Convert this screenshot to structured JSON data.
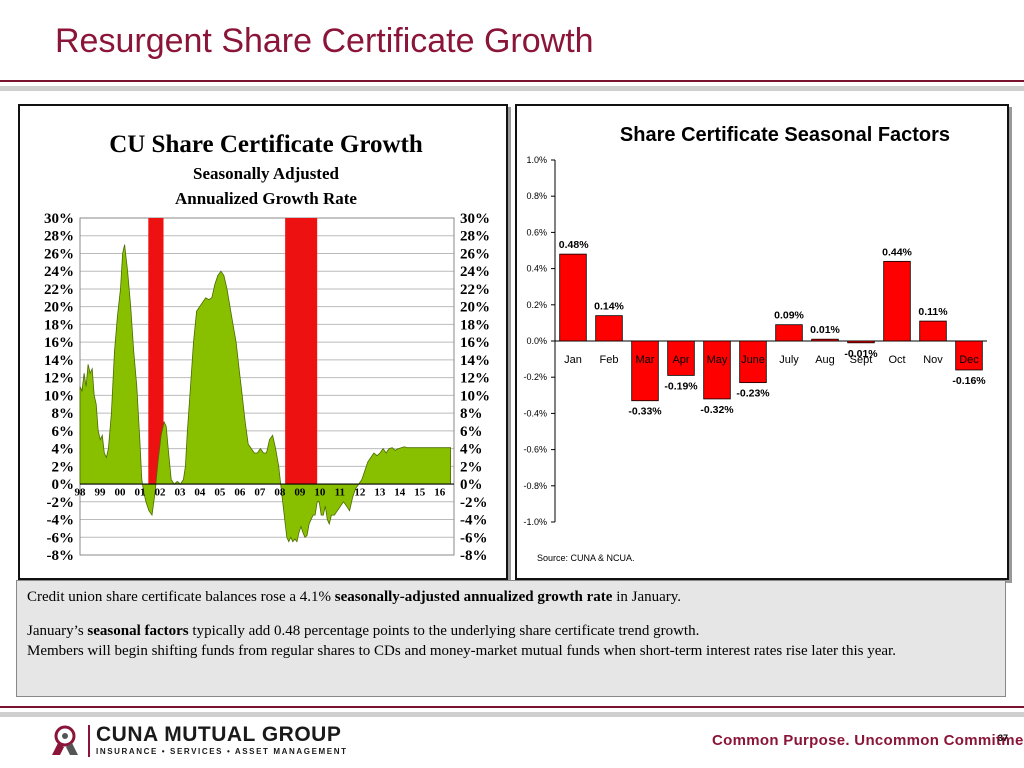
{
  "title": "Resurgent Share Certificate Growth",
  "footer": {
    "company": "CUNA MUTUAL GROUP",
    "tagline": "INSURANCE  •  SERVICES  •  ASSET MANAGEMENT",
    "slogan": "Common Purpose. Uncommon Commitment.",
    "page_number": "37"
  },
  "text_box": {
    "line1_pre": "Credit union share certificate balances rose a 4.1% ",
    "line1_bold": "seasonally-adjusted annualized growth rate",
    "line1_post": " in January.",
    "line2_pre": "January’s ",
    "line2_bold": "seasonal factors",
    "line2_post": "  typically add 0.48 percentage points to the underlying share certificate trend growth.",
    "line3": "Members will begin shifting funds from regular shares to CDs and money-market mutual funds when short-term interest rates rise later this year."
  },
  "colors": {
    "title": "#8a1538",
    "area_fill": "#88c000",
    "bar_fill": "#ff0000",
    "highlight_fill": "#ee1111"
  },
  "chart_data": [
    {
      "type": "area",
      "title": "CU Share Certificate Growth",
      "subtitle_line1": "Seasonally Adjusted",
      "subtitle_line2": "Annualized Growth Rate",
      "ylim": [
        -8,
        30
      ],
      "y_ticks": [
        30,
        28,
        26,
        24,
        22,
        20,
        18,
        16,
        14,
        12,
        10,
        8,
        6,
        4,
        2,
        0,
        -2,
        -4,
        -6,
        -8
      ],
      "y_tick_labels": [
        "30%",
        "28%",
        "26%",
        "24%",
        "22%",
        "20%",
        "18%",
        "16%",
        "14%",
        "12%",
        "10%",
        "8%",
        "6%",
        "4%",
        "2%",
        "0%",
        "-2%",
        "-4%",
        "-6%",
        "-8%"
      ],
      "x_tick_labels": [
        "98",
        "99",
        "00",
        "01",
        "02",
        "03",
        "04",
        "05",
        "06",
        "07",
        "08",
        "09",
        "10",
        "11",
        "12",
        "13",
        "14",
        "15",
        "16"
      ],
      "xlim": [
        1997.8,
        2016.25
      ],
      "highlights": [
        {
          "x0": 2001.17,
          "x1": 2001.92
        },
        {
          "x0": 2007.92,
          "x1": 2009.5
        }
      ],
      "x": [
        1997.8,
        1997.9,
        1998.0,
        1998.1,
        1998.2,
        1998.3,
        1998.4,
        1998.5,
        1998.6,
        1998.7,
        1998.8,
        1998.9,
        1999.0,
        1999.1,
        1999.2,
        1999.35,
        1999.5,
        1999.65,
        1999.8,
        1999.9,
        2000.0,
        2000.15,
        2000.3,
        2000.45,
        2000.6,
        2000.75,
        2000.85,
        2000.95,
        2001.05,
        2001.2,
        2001.35,
        2001.5,
        2001.65,
        2001.8,
        2001.95,
        2002.05,
        2002.15,
        2002.3,
        2002.45,
        2002.6,
        2002.75,
        2002.9,
        2003.0,
        2003.1,
        2003.25,
        2003.4,
        2003.55,
        2003.7,
        2003.85,
        2004.0,
        2004.15,
        2004.3,
        2004.45,
        2004.6,
        2004.75,
        2004.9,
        2005.05,
        2005.2,
        2005.35,
        2005.5,
        2005.65,
        2005.8,
        2005.95,
        2006.1,
        2006.25,
        2006.4,
        2006.55,
        2006.7,
        2006.85,
        2007.0,
        2007.15,
        2007.3,
        2007.45,
        2007.6,
        2007.75,
        2007.9,
        2008.0,
        2008.1,
        2008.2,
        2008.3,
        2008.4,
        2008.5,
        2008.6,
        2008.7,
        2008.8,
        2008.9,
        2009.0,
        2009.1,
        2009.2,
        2009.3,
        2009.4,
        2009.5,
        2009.6,
        2009.7,
        2009.8,
        2009.9,
        2010.0,
        2010.1,
        2010.2,
        2010.35,
        2010.5,
        2010.65,
        2010.8,
        2010.95,
        2011.1,
        2011.25,
        2011.4,
        2011.55,
        2011.7,
        2011.85,
        2012.0,
        2012.15,
        2012.3,
        2012.45,
        2012.6,
        2012.75,
        2012.9,
        2013.05,
        2013.2,
        2013.35,
        2013.5,
        2013.65,
        2013.8,
        2013.95,
        2014.1,
        2014.25,
        2014.4,
        2014.55,
        2014.7,
        2014.85,
        2015.0,
        2015.15,
        2015.3,
        2015.45,
        2015.6,
        2015.75,
        2015.9,
        2016.0,
        2016.08
      ],
      "y": [
        11,
        10.5,
        12.5,
        11,
        13.5,
        12.5,
        13,
        10,
        9,
        6,
        5,
        5.5,
        3.5,
        3,
        4,
        8,
        15,
        19,
        22,
        26,
        27,
        24,
        20,
        15,
        11,
        5,
        0.5,
        -1,
        -2,
        -3,
        -3.5,
        -1,
        2.5,
        5.5,
        7,
        6.5,
        4,
        0.5,
        0,
        0.3,
        0,
        0.5,
        2,
        6,
        11,
        16,
        19.5,
        20,
        20.5,
        21,
        20.8,
        21,
        22.5,
        23.5,
        24,
        23.5,
        22,
        20,
        18,
        16,
        13,
        10,
        7,
        4.5,
        4,
        3.5,
        3.5,
        4,
        3.5,
        3.5,
        5,
        5.5,
        4,
        2,
        -1,
        -4,
        -6,
        -6.5,
        -6,
        -6.5,
        -6.2,
        -6.5,
        -5.5,
        -4.8,
        -5.5,
        -6,
        -5.8,
        -4.5,
        -4,
        -3.5,
        -3.5,
        -2,
        -2,
        -3.5,
        -3.5,
        -2.5,
        -4,
        -4.5,
        -3.5,
        -3.5,
        -3,
        -2.5,
        -2,
        -2.5,
        -3,
        -1.5,
        -0.5,
        0,
        0.5,
        1.5,
        2.5,
        3,
        3.5,
        3.2,
        3.5,
        4,
        3.5,
        4,
        4.1,
        3.8,
        4,
        4.1,
        4.2,
        4.1,
        4.1,
        4.1,
        4.1,
        4.1,
        4.1,
        4.1,
        4.1,
        4.1,
        4.1,
        4.1,
        4.1,
        4.1,
        4.1,
        4.1,
        4.1
      ]
    },
    {
      "type": "bar",
      "title": "Share Certificate Seasonal Factors",
      "categories": [
        "Jan",
        "Feb",
        "Mar",
        "Apr",
        "May",
        "June",
        "July",
        "Aug",
        "Sept",
        "Oct",
        "Nov",
        "Dec"
      ],
      "values": [
        0.48,
        0.14,
        -0.33,
        -0.19,
        -0.32,
        -0.23,
        0.09,
        0.01,
        -0.01,
        0.44,
        0.11,
        -0.16
      ],
      "value_labels": [
        "0.48%",
        "0.14%",
        "-0.33%",
        "-0.19%",
        "-0.32%",
        "-0.23%",
        "0.09%",
        "0.01%",
        "-0.01%",
        "0.44%",
        "0.11%",
        "-0.16%"
      ],
      "ylim": [
        -1.0,
        1.0
      ],
      "y_ticks": [
        1.0,
        0.8,
        0.6,
        0.4,
        0.2,
        0.0,
        -0.2,
        -0.4,
        -0.6,
        -0.8,
        -1.0
      ],
      "y_tick_labels": [
        "1.0%",
        "0.8%",
        "0.6%",
        "0.4%",
        "0.2%",
        "0.0%",
        "-0.2%",
        "-0.4%",
        "-0.6%",
        "-0.8%",
        "-1.0%"
      ],
      "source": "Source: CUNA & NCUA."
    }
  ]
}
